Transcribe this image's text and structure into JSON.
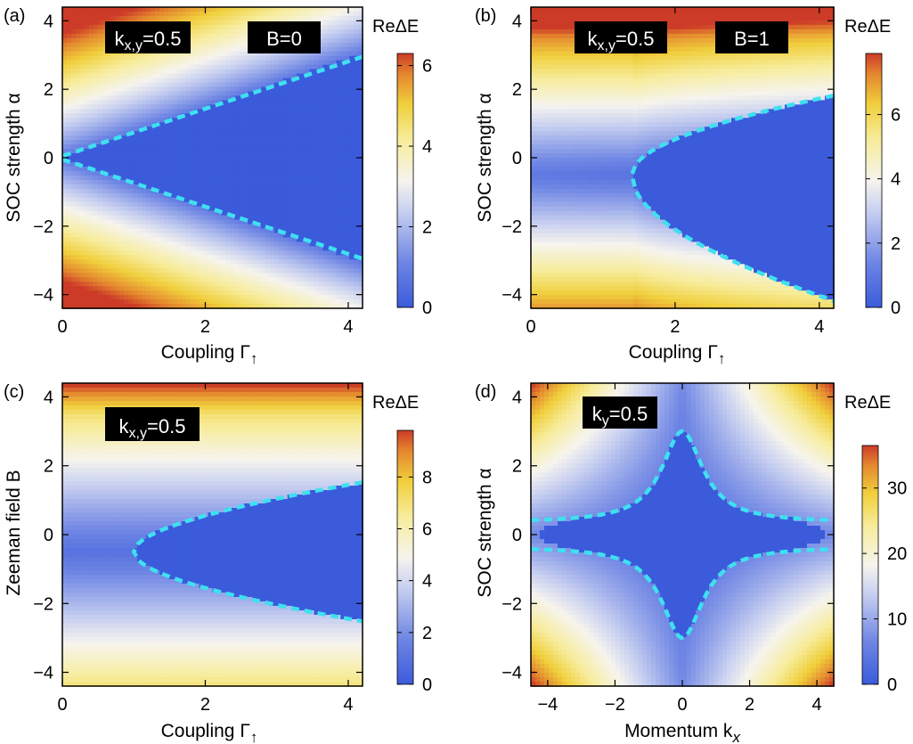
{
  "chart_data": [
    {
      "type": "heatmap",
      "panel_label": "(a)",
      "xlabel": "Coupling Γ",
      "xlabel_sub": "↑",
      "ylabel": "SOC strength α",
      "xlim": [
        0,
        4.2
      ],
      "ylim": [
        -4.4,
        4.4
      ],
      "xticks": [
        "0",
        "2",
        "4"
      ],
      "yticks": [
        "4",
        "2",
        "0",
        "−2",
        "−4"
      ],
      "colorbar": {
        "title": "ReΔE",
        "ticks": [
          "6",
          "4",
          "2",
          "0"
        ],
        "range": [
          0,
          6.3
        ]
      },
      "annotations": [
        {
          "text": "k",
          "sub": "x,y",
          "rest": "=0.5"
        },
        {
          "text": "B=0"
        }
      ],
      "boundary": {
        "description": "dashed cyan exceptional boundary",
        "upper": [
          [
            0,
            0.05
          ],
          [
            1,
            0.78
          ],
          [
            2,
            1.5
          ],
          [
            3,
            2.2
          ],
          [
            4.2,
            2.95
          ]
        ],
        "lower": [
          [
            0,
            -0.05
          ],
          [
            1,
            -0.72
          ],
          [
            2,
            -1.45
          ],
          [
            3,
            -2.15
          ],
          [
            4.2,
            -2.95
          ]
        ]
      },
      "params": {
        "kxy": 0.5,
        "B": 0
      }
    },
    {
      "type": "heatmap",
      "panel_label": "(b)",
      "xlabel": "Coupling Γ",
      "xlabel_sub": "↑",
      "ylabel": "SOC strength α",
      "xlim": [
        0,
        4.2
      ],
      "ylim": [
        -4.4,
        4.4
      ],
      "xticks": [
        "0",
        "2",
        "4"
      ],
      "yticks": [
        "4",
        "2",
        "0",
        "−2",
        "−4"
      ],
      "colorbar": {
        "title": "ReΔE",
        "ticks": [
          "6",
          "4",
          "2",
          "0"
        ],
        "range": [
          0,
          7.9
        ]
      },
      "annotations": [
        {
          "text": "k",
          "sub": "x,y",
          "rest": "=0.5"
        },
        {
          "text": "B=1"
        }
      ],
      "boundary": {
        "upper": [
          [
            1.4,
            -0.5
          ],
          [
            2,
            0.5
          ],
          [
            3,
            1.15
          ],
          [
            4.2,
            1.8
          ]
        ],
        "lower": [
          [
            1.4,
            -0.5
          ],
          [
            2,
            -1.5
          ],
          [
            3,
            -2.7
          ],
          [
            4.2,
            -3.8
          ]
        ]
      },
      "params": {
        "kxy": 0.5,
        "B": 1
      }
    },
    {
      "type": "heatmap",
      "panel_label": "(c)",
      "xlabel": "Coupling Γ",
      "xlabel_sub": "↑",
      "ylabel": "Zeeman field B",
      "xlim": [
        0,
        4.2
      ],
      "ylim": [
        -4.4,
        4.4
      ],
      "xticks": [
        "0",
        "2",
        "4"
      ],
      "yticks": [
        "4",
        "2",
        "0",
        "−2",
        "−4"
      ],
      "colorbar": {
        "title": "ReΔE",
        "ticks": [
          "8",
          "6",
          "4",
          "2",
          "0"
        ],
        "range": [
          0,
          9.8
        ]
      },
      "annotations": [
        {
          "text": "k",
          "sub": "x,y",
          "rest": "=0.5"
        }
      ],
      "boundary": {
        "upper": [
          [
            1.0,
            -0.5
          ],
          [
            2,
            0.45
          ],
          [
            3,
            1.0
          ],
          [
            4.2,
            1.55
          ]
        ],
        "lower": [
          [
            1.0,
            -0.5
          ],
          [
            2,
            -1.45
          ],
          [
            3,
            -2.0
          ],
          [
            4.2,
            -2.55
          ]
        ]
      },
      "params": {
        "kxy": 0.5
      }
    },
    {
      "type": "heatmap",
      "panel_label": "(d)",
      "xlabel": "Momentum k",
      "xlabel_sub": "x",
      "ylabel": "SOC strength α",
      "xlim": [
        -4.5,
        4.5
      ],
      "ylim": [
        -4.4,
        4.4
      ],
      "xticks": [
        "−4",
        "−2",
        "0",
        "2",
        "4"
      ],
      "yticks": [
        "4",
        "2",
        "0",
        "−2",
        "−4"
      ],
      "colorbar": {
        "title": "ReΔE",
        "ticks": [
          "30",
          "20",
          "10",
          "0"
        ],
        "range": [
          0,
          36.5
        ]
      },
      "annotations": [
        {
          "text": "k",
          "sub": "y",
          "rest": "=0.5"
        }
      ],
      "boundary": {
        "description": "star-shaped region with cusps at α=±3 (kx=0) and α≈±0.35 at kx=±4.5",
        "points": [
          [
            0,
            3.0
          ],
          [
            1,
            1.0
          ],
          [
            2,
            0.6
          ],
          [
            4.5,
            0.35
          ],
          [
            0,
            -3.0
          ],
          [
            -4.5,
            -0.35
          ]
        ]
      },
      "params": {
        "ky": 0.5
      }
    }
  ]
}
